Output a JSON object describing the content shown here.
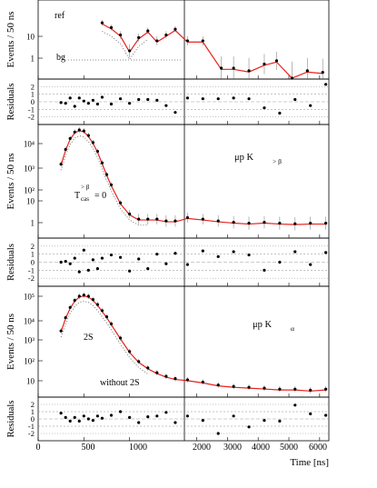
{
  "figure": {
    "x_axis_label": "Time [ns]",
    "x_tick_labels": [
      "0",
      "500",
      "1000",
      "2000",
      "3000",
      "4000",
      "5000",
      "6000"
    ],
    "residuals_ylabel": "Residuals",
    "colors": {
      "fit": "#e8201c",
      "points": "#000000",
      "bg": "#666666",
      "component": "#555555"
    }
  },
  "chart_data": [
    {
      "type": "scatter",
      "ylabel": "Events / 50 ns",
      "yscale": "log",
      "y_tick_labels": [
        "10",
        "1"
      ],
      "annotations": [
        "ref",
        "bg"
      ],
      "x_axis_break_ns": 1600,
      "series": [
        {
          "values": [
            [
              700,
              14
            ],
            [
              800,
              10
            ],
            [
              900,
              6
            ],
            [
              1000,
              2
            ],
            [
              1100,
              5
            ],
            [
              1200,
              8
            ],
            [
              1300,
              4
            ],
            [
              1400,
              6
            ],
            [
              1500,
              9
            ],
            [
              1700,
              4
            ],
            [
              2200,
              4
            ],
            [
              2800,
              0.6
            ],
            [
              3200,
              0.6
            ],
            [
              3700,
              0.5
            ],
            [
              4200,
              0.8
            ],
            [
              4600,
              1
            ],
            [
              5100,
              0.3
            ],
            [
              5600,
              0.5
            ],
            [
              6100,
              0.45
            ]
          ]
        }
      ]
    },
    {
      "type": "scatter",
      "ylabel": "Residuals",
      "y_tick_labels": [
        "2",
        "1",
        "0",
        "-1",
        "-2"
      ],
      "series": [
        {
          "values": [
            [
              250,
              -0.1
            ],
            [
              300,
              -0.2
            ],
            [
              350,
              0.5
            ],
            [
              400,
              -0.6
            ],
            [
              450,
              0.5
            ],
            [
              500,
              0.1
            ],
            [
              550,
              -0.2
            ],
            [
              600,
              0.2
            ],
            [
              650,
              -0.3
            ],
            [
              700,
              0.6
            ],
            [
              800,
              -0.3
            ],
            [
              900,
              0.4
            ],
            [
              1000,
              -0.2
            ],
            [
              1100,
              0.3
            ],
            [
              1200,
              0.3
            ],
            [
              1300,
              0.2
            ],
            [
              1400,
              -0.5
            ],
            [
              1500,
              -1.4
            ],
            [
              1700,
              0.5
            ],
            [
              2200,
              0.4
            ],
            [
              2700,
              0.4
            ],
            [
              3200,
              0.5
            ],
            [
              3700,
              0.4
            ],
            [
              4200,
              -0.8
            ],
            [
              4700,
              -1.5
            ],
            [
              5200,
              0.3
            ],
            [
              5700,
              -0.5
            ],
            [
              6200,
              2.3
            ]
          ]
        }
      ]
    },
    {
      "type": "scatter",
      "ylabel": "Events / 50 ns",
      "yscale": "log",
      "y_tick_labels": [
        "10⁴",
        "10³",
        "10²",
        "10",
        "1"
      ],
      "panel_label": "μp K",
      "panel_label_sub": "> β",
      "annotations": [
        "T",
        "cas",
        "> β",
        "= 0"
      ],
      "x_axis_break_ns": 1600,
      "series": [
        {
          "values": [
            [
              250,
              700
            ],
            [
              300,
              3000
            ],
            [
              350,
              9000
            ],
            [
              400,
              17000
            ],
            [
              450,
              21000
            ],
            [
              500,
              19000
            ],
            [
              550,
              12000
            ],
            [
              600,
              6000
            ],
            [
              650,
              2500
            ],
            [
              700,
              800
            ],
            [
              750,
              250
            ],
            [
              800,
              90
            ],
            [
              900,
              15
            ],
            [
              1000,
              5
            ],
            [
              1100,
              3
            ],
            [
              1200,
              3
            ],
            [
              1300,
              3
            ],
            [
              1400,
              2.5
            ],
            [
              1500,
              2.5
            ],
            [
              1700,
              3.5
            ],
            [
              2200,
              3
            ],
            [
              2700,
              2.5
            ],
            [
              3200,
              2.2
            ],
            [
              3700,
              2
            ],
            [
              4200,
              2.2
            ],
            [
              4700,
              2
            ],
            [
              5200,
              1.9
            ],
            [
              5700,
              2
            ],
            [
              6200,
              2
            ]
          ]
        }
      ]
    },
    {
      "type": "scatter",
      "ylabel": "Residuals",
      "y_tick_labels": [
        "2",
        "1",
        "0",
        "-1",
        "-2"
      ],
      "series": [
        {
          "values": [
            [
              250,
              0
            ],
            [
              300,
              0.1
            ],
            [
              350,
              -0.2
            ],
            [
              400,
              0.5
            ],
            [
              450,
              -1.2
            ],
            [
              500,
              1.5
            ],
            [
              550,
              -1
            ],
            [
              600,
              0.3
            ],
            [
              650,
              -0.8
            ],
            [
              700,
              0.5
            ],
            [
              800,
              0.9
            ],
            [
              900,
              0.6
            ],
            [
              1000,
              -1.1
            ],
            [
              1100,
              0.4
            ],
            [
              1200,
              -0.8
            ],
            [
              1300,
              1
            ],
            [
              1400,
              -0.2
            ],
            [
              1500,
              1.1
            ],
            [
              1700,
              -0.3
            ],
            [
              2200,
              1.4
            ],
            [
              2700,
              0.7
            ],
            [
              3200,
              1.3
            ],
            [
              3700,
              0.9
            ],
            [
              4200,
              -1
            ],
            [
              4700,
              0
            ],
            [
              5200,
              1.3
            ],
            [
              5700,
              -0.3
            ],
            [
              6200,
              1.2
            ]
          ]
        }
      ]
    },
    {
      "type": "scatter",
      "ylabel": "Events / 50 ns",
      "yscale": "log",
      "y_tick_labels": [
        "10⁵",
        "10⁴",
        "10³",
        "10²",
        "10"
      ],
      "panel_label": "μp K",
      "panel_label_sub": "α",
      "annotations": [
        "2S",
        "without 2S"
      ],
      "x_axis_break_ns": 1600,
      "series": [
        {
          "values": [
            [
              250,
              3000
            ],
            [
              300,
              11000
            ],
            [
              350,
              30000
            ],
            [
              400,
              60000
            ],
            [
              450,
              90000
            ],
            [
              500,
              100000
            ],
            [
              550,
              90000
            ],
            [
              600,
              65000
            ],
            [
              650,
              40000
            ],
            [
              700,
              22000
            ],
            [
              750,
              12000
            ],
            [
              800,
              6000
            ],
            [
              900,
              1500
            ],
            [
              1000,
              400
            ],
            [
              1100,
              150
            ],
            [
              1200,
              80
            ],
            [
              1300,
              50
            ],
            [
              1400,
              35
            ],
            [
              1500,
              28
            ],
            [
              1700,
              25
            ],
            [
              2200,
              20
            ],
            [
              2700,
              15
            ],
            [
              3200,
              13
            ],
            [
              3700,
              12
            ],
            [
              4200,
              11
            ],
            [
              4700,
              10
            ],
            [
              5200,
              10
            ],
            [
              5700,
              9
            ],
            [
              6200,
              10
            ]
          ]
        }
      ]
    },
    {
      "type": "scatter",
      "ylabel": "Residuals",
      "y_tick_labels": [
        "2",
        "1",
        "0",
        "-1",
        "-2"
      ],
      "series": [
        {
          "values": [
            [
              250,
              0.8
            ],
            [
              300,
              0.2
            ],
            [
              350,
              -0.3
            ],
            [
              400,
              0.2
            ],
            [
              450,
              -0.3
            ],
            [
              500,
              0.4
            ],
            [
              550,
              0
            ],
            [
              600,
              -0.2
            ],
            [
              650,
              0.4
            ],
            [
              700,
              0.1
            ],
            [
              800,
              0.5
            ],
            [
              900,
              1
            ],
            [
              1000,
              0.2
            ],
            [
              1100,
              -0.5
            ],
            [
              1200,
              0.3
            ],
            [
              1300,
              0.4
            ],
            [
              1400,
              0.9
            ],
            [
              1500,
              -0.5
            ],
            [
              1700,
              0.4
            ],
            [
              2200,
              -0.2
            ],
            [
              2700,
              -2
            ],
            [
              3200,
              0.4
            ],
            [
              3700,
              -1.1
            ],
            [
              4200,
              -0.2
            ],
            [
              4700,
              -0.3
            ],
            [
              5200,
              1.9
            ],
            [
              5700,
              0.7
            ],
            [
              6200,
              0.5
            ]
          ]
        }
      ]
    }
  ]
}
